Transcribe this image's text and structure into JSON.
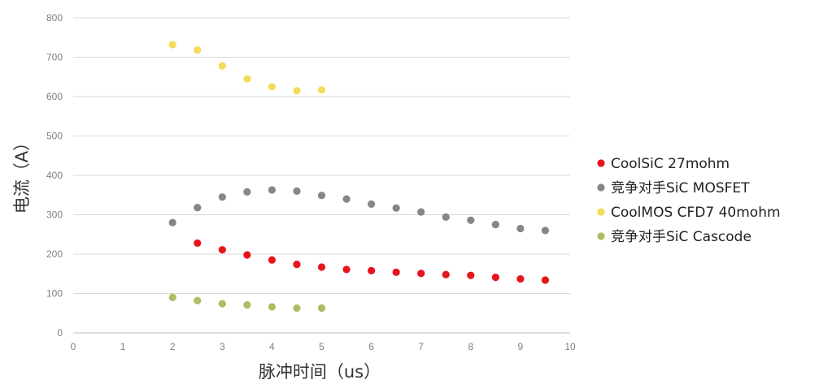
{
  "chart_data": {
    "type": "scatter",
    "xlabel": "脉冲时间（us）",
    "ylabel": "电流（A）",
    "xlim": [
      0,
      10
    ],
    "ylim": [
      0,
      800
    ],
    "x_ticks": [
      "0",
      "1",
      "2",
      "3",
      "4",
      "5",
      "6",
      "7",
      "8",
      "9",
      "10"
    ],
    "y_ticks": [
      "0",
      "100",
      "200",
      "300",
      "400",
      "500",
      "600",
      "700",
      "800"
    ],
    "grid": "horizontal",
    "legend_position": "right",
    "series": [
      {
        "name": "CoolSiC 27mohm",
        "color": "#e8141b",
        "x": [
          2.5,
          3,
          3.5,
          4,
          4.5,
          5,
          5.5,
          6,
          6.5,
          7,
          7.5,
          8,
          8.5,
          9,
          9.5
        ],
        "y": [
          228,
          211,
          198,
          185,
          174,
          167,
          161,
          158,
          154,
          151,
          148,
          146,
          141,
          137,
          134
        ]
      },
      {
        "name": "竞争对手SiC MOSFET",
        "color": "#8a8485",
        "x": [
          2,
          2.5,
          3,
          3.5,
          4,
          4.5,
          5,
          5.5,
          6,
          6.5,
          7,
          7.5,
          8,
          8.5,
          9,
          9.5
        ],
        "y": [
          280,
          318,
          345,
          358,
          363,
          360,
          349,
          340,
          327,
          317,
          307,
          294,
          286,
          275,
          265,
          260
        ]
      },
      {
        "name": "CoolMOS CFD7 40mohm",
        "color": "#f4dc5a",
        "x": [
          2,
          2.5,
          3,
          3.5,
          4,
          4.5,
          5
        ],
        "y": [
          732,
          718,
          678,
          645,
          625,
          615,
          617
        ]
      },
      {
        "name": "竞争对手SiC Cascode",
        "color": "#a9bf62",
        "x": [
          2,
          2.5,
          3,
          3.5,
          4,
          4.5,
          5
        ],
        "y": [
          90,
          82,
          74,
          71,
          66,
          63,
          63
        ]
      }
    ]
  }
}
